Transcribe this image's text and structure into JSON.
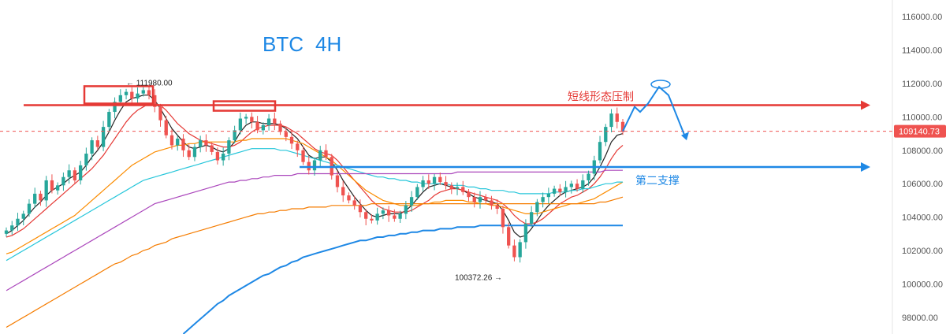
{
  "chart_data": {
    "type": "candlestick",
    "title": "BTC",
    "subtitle": "4H",
    "ylim": [
      97000,
      117000
    ],
    "y_ticks": [
      98000,
      100000,
      102000,
      104000,
      106000,
      108000,
      110000,
      112000,
      114000,
      116000
    ],
    "y_tick_labels": [
      "98000.00",
      "100000.00",
      "102000.00",
      "104000.00",
      "106000.00",
      "108000.00",
      "110000.00",
      "112000.00",
      "114000.00",
      "116000.00"
    ],
    "current_price": 109140.73,
    "current_price_label": "109140.73",
    "high": {
      "value": 111980.0,
      "label": "111980.00"
    },
    "low": {
      "value": 100372.26,
      "label": "100372.26"
    },
    "resistance": {
      "value": 110700,
      "label": "短线形态压制"
    },
    "support": {
      "value": 107000,
      "label": "第二支撑"
    },
    "candles_close": [
      103200,
      103500,
      103900,
      104200,
      104800,
      105400,
      105000,
      106200,
      105600,
      105900,
      106400,
      106800,
      106200,
      107100,
      107800,
      108600,
      108200,
      109400,
      110300,
      110900,
      111300,
      111500,
      111100,
      111400,
      111600,
      111300,
      110600,
      109800,
      108900,
      108300,
      108700,
      108000,
      107600,
      108200,
      108600,
      108300,
      107900,
      107400,
      107800,
      108600,
      109200,
      109900,
      110000,
      109700,
      109200,
      109500,
      109900,
      109600,
      109100,
      108800,
      108400,
      108000,
      107300,
      106800,
      107400,
      108000,
      107600,
      106500,
      105800,
      105300,
      105000,
      104700,
      104300,
      103900,
      103800,
      104200,
      104400,
      104100,
      103900,
      104200,
      104700,
      105200,
      105800,
      106200,
      106000,
      106400,
      106100,
      105900,
      105700,
      105800,
      105500,
      105200,
      104900,
      105200,
      105000,
      104700,
      104500,
      103400,
      102300,
      101600,
      102500,
      103600,
      104300,
      104900,
      105200,
      105400,
      105700,
      105500,
      105800,
      106000,
      105700,
      106200,
      106600,
      107400,
      108500,
      109400,
      110200,
      109700,
      109100
    ],
    "ma_series": [
      {
        "color": "#222222",
        "values": [
          103000,
          103200,
          103500,
          103800,
          104200,
          104600,
          104900,
          105300,
          105600,
          105800,
          106000,
          106300,
          106500,
          106700,
          107100,
          107600,
          108000,
          108500,
          109100,
          109800,
          110400,
          110900,
          111100,
          111200,
          111300,
          111300,
          111000,
          110500,
          109900,
          109300,
          108900,
          108500,
          108200,
          108100,
          108200,
          108300,
          108200,
          108000,
          107900,
          108100,
          108500,
          109100,
          109500,
          109700,
          109700,
          109600,
          109600,
          109600,
          109500,
          109300,
          109000,
          108700,
          108200,
          107700,
          107500,
          107600,
          107600,
          107300,
          106800,
          106200,
          105700,
          105200,
          104800,
          104400,
          104100,
          104000,
          104100,
          104200,
          104200,
          104200,
          104400,
          104700,
          105100,
          105500,
          105800,
          105900,
          106000,
          105900,
          105800,
          105700,
          105600,
          105400,
          105200,
          105100,
          105000,
          104900,
          104800,
          104400,
          103800,
          103100,
          102800,
          102900,
          103300,
          103800,
          104300,
          104700,
          105000,
          105300,
          105500,
          105600,
          105700,
          105800,
          106000,
          106400,
          107000,
          107700,
          108500,
          108900,
          109000
        ]
      },
      {
        "color": "#e53935",
        "values": [
          102800,
          102900,
          103100,
          103300,
          103600,
          103900,
          104200,
          104500,
          104800,
          105100,
          105400,
          105700,
          106000,
          106300,
          106600,
          106900,
          107300,
          107700,
          108200,
          108700,
          109200,
          109700,
          110100,
          110400,
          110600,
          110800,
          110800,
          110700,
          110400,
          110000,
          109600,
          109300,
          109000,
          108800,
          108600,
          108500,
          108400,
          108300,
          108200,
          108200,
          108300,
          108500,
          108800,
          109100,
          109300,
          109400,
          109500,
          109500,
          109500,
          109400,
          109200,
          109000,
          108700,
          108400,
          108100,
          107900,
          107800,
          107700,
          107400,
          107000,
          106600,
          106200,
          105800,
          105400,
          105000,
          104700,
          104500,
          104400,
          104300,
          104300,
          104300,
          104400,
          104600,
          104800,
          105000,
          105300,
          105500,
          105600,
          105700,
          105700,
          105600,
          105500,
          105400,
          105300,
          105200,
          105100,
          105000,
          104800,
          104500,
          104100,
          103800,
          103600,
          103600,
          103700,
          103900,
          104200,
          104500,
          104800,
          105000,
          105200,
          105300,
          105500,
          105700,
          106000,
          106400,
          106900,
          107500,
          108000,
          108300
        ]
      },
      {
        "color": "#fb8c00",
        "values": [
          101800,
          101900,
          102100,
          102300,
          102500,
          102700,
          102900,
          103100,
          103300,
          103500,
          103700,
          103900,
          104100,
          104400,
          104700,
          105000,
          105300,
          105600,
          105900,
          106200,
          106500,
          106800,
          107100,
          107300,
          107500,
          107700,
          107900,
          108000,
          108100,
          108200,
          108300,
          108300,
          108400,
          108400,
          108500,
          108500,
          108500,
          108500,
          108500,
          108500,
          108500,
          108600,
          108600,
          108700,
          108700,
          108700,
          108700,
          108700,
          108700,
          108700,
          108600,
          108500,
          108400,
          108200,
          108000,
          107800,
          107600,
          107400,
          107100,
          106800,
          106500,
          106200,
          105900,
          105600,
          105400,
          105200,
          105000,
          104900,
          104800,
          104700,
          104700,
          104700,
          104700,
          104800,
          104800,
          104900,
          104900,
          105000,
          105000,
          105000,
          105000,
          104900,
          104900,
          104800,
          104800,
          104700,
          104700,
          104600,
          104500,
          104400,
          104300,
          104200,
          104200,
          104200,
          104300,
          104400,
          104500,
          104600,
          104700,
          104800,
          104800,
          104900,
          105000,
          105100,
          105300,
          105500,
          105700,
          105900,
          106100
        ]
      },
      {
        "color": "#26c6da",
        "values": [
          101400,
          101600,
          101800,
          102000,
          102200,
          102400,
          102600,
          102800,
          103000,
          103200,
          103400,
          103600,
          103800,
          104000,
          104200,
          104400,
          104600,
          104800,
          105000,
          105200,
          105400,
          105600,
          105800,
          106000,
          106200,
          106300,
          106400,
          106500,
          106600,
          106700,
          106800,
          106900,
          107000,
          107100,
          107200,
          107300,
          107400,
          107500,
          107600,
          107700,
          107800,
          107900,
          108000,
          108100,
          108100,
          108100,
          108100,
          108100,
          108000,
          108000,
          107900,
          107800,
          107700,
          107600,
          107500,
          107400,
          107300,
          107200,
          107100,
          107000,
          106900,
          106800,
          106700,
          106600,
          106500,
          106400,
          106400,
          106300,
          106300,
          106200,
          106200,
          106100,
          106100,
          106000,
          106000,
          106000,
          106000,
          106000,
          105900,
          105900,
          105900,
          105800,
          105800,
          105700,
          105700,
          105600,
          105600,
          105600,
          105500,
          105500,
          105400,
          105400,
          105400,
          105400,
          105400,
          105400,
          105500,
          105500,
          105500,
          105600,
          105600,
          105700,
          105700,
          105800,
          105900,
          106000,
          106000,
          106100,
          106100
        ]
      },
      {
        "color": "#ab47bc",
        "values": [
          99600,
          99800,
          100000,
          100200,
          100400,
          100600,
          100800,
          101000,
          101200,
          101400,
          101600,
          101800,
          102000,
          102200,
          102400,
          102600,
          102800,
          103000,
          103200,
          103400,
          103600,
          103800,
          104000,
          104200,
          104400,
          104600,
          104800,
          104900,
          105000,
          105100,
          105200,
          105300,
          105400,
          105500,
          105600,
          105700,
          105800,
          105900,
          106000,
          106100,
          106100,
          106200,
          106200,
          106300,
          106300,
          106400,
          106400,
          106500,
          106500,
          106500,
          106500,
          106600,
          106600,
          106600,
          106600,
          106600,
          106600,
          106600,
          106600,
          106600,
          106600,
          106600,
          106600,
          106600,
          106600,
          106600,
          106600,
          106600,
          106600,
          106600,
          106600,
          106600,
          106600,
          106600,
          106600,
          106600,
          106600,
          106600,
          106600,
          106700,
          106700,
          106700,
          106700,
          106700,
          106700,
          106700,
          106700,
          106700,
          106700,
          106700,
          106700,
          106700,
          106700,
          106700,
          106700,
          106700,
          106700,
          106700,
          106700,
          106700,
          106700,
          106700,
          106700,
          106700,
          106700,
          106800,
          106800,
          106800,
          106800
        ]
      },
      {
        "color": "#f57c00",
        "values": [
          97400,
          97600,
          97800,
          98000,
          98200,
          98400,
          98600,
          98800,
          99000,
          99200,
          99400,
          99600,
          99800,
          100000,
          100200,
          100400,
          100600,
          100800,
          101000,
          101200,
          101300,
          101500,
          101700,
          101800,
          102000,
          102100,
          102300,
          102400,
          102500,
          102700,
          102800,
          102900,
          103000,
          103100,
          103200,
          103300,
          103400,
          103500,
          103600,
          103700,
          103800,
          103900,
          104000,
          104100,
          104200,
          104200,
          104300,
          104300,
          104400,
          104400,
          104500,
          104500,
          104500,
          104600,
          104600,
          104600,
          104600,
          104700,
          104700,
          104700,
          104700,
          104700,
          104700,
          104700,
          104800,
          104800,
          104800,
          104800,
          104800,
          104800,
          104800,
          104800,
          104800,
          104800,
          104800,
          104800,
          104800,
          104800,
          104800,
          104800,
          104800,
          104800,
          104800,
          104800,
          104800,
          104800,
          104800,
          104800,
          104800,
          104800,
          104800,
          104800,
          104800,
          104800,
          104800,
          104800,
          104800,
          104800,
          104800,
          104800,
          104800,
          104800,
          104800,
          104800,
          104900,
          104900,
          105000,
          105100,
          105200
        ]
      },
      {
        "color": "#1e88e5",
        "values": [
          null,
          null,
          null,
          null,
          null,
          null,
          null,
          null,
          null,
          null,
          null,
          null,
          null,
          null,
          null,
          null,
          null,
          null,
          null,
          null,
          null,
          null,
          null,
          null,
          null,
          null,
          null,
          null,
          null,
          null,
          null,
          97000,
          97300,
          97600,
          97900,
          98200,
          98500,
          98800,
          99000,
          99300,
          99500,
          99700,
          99900,
          100100,
          100300,
          100500,
          100600,
          100800,
          101000,
          101100,
          101300,
          101400,
          101600,
          101700,
          101800,
          101900,
          102000,
          102100,
          102200,
          102300,
          102400,
          102500,
          102600,
          102600,
          102700,
          102800,
          102800,
          102900,
          102900,
          103000,
          103000,
          103100,
          103100,
          103200,
          103200,
          103200,
          103300,
          103300,
          103300,
          103400,
          103400,
          103400,
          103400,
          103500,
          103500,
          103500,
          103500,
          103500,
          103500,
          103500,
          103500,
          103500,
          103500,
          103500,
          103500,
          103500,
          103500,
          103500,
          103500,
          103500,
          103500,
          103500,
          103500,
          103500,
          103500,
          103500,
          103500,
          103500,
          103500
        ]
      }
    ]
  }
}
